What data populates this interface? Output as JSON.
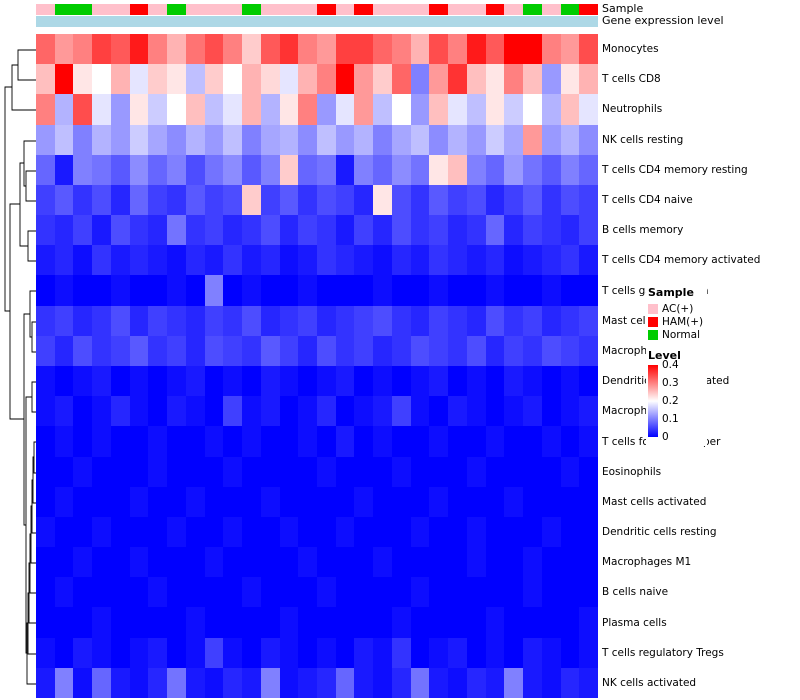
{
  "figure": {
    "background": "#ffffff"
  },
  "legend": {
    "sample_title": "Sample",
    "sample_items": [
      {
        "label": "AC(+)",
        "color": "#FFC0CB"
      },
      {
        "label": "HAM(+)",
        "color": "#FF0000"
      },
      {
        "label": "Normal",
        "color": "#00CC00"
      }
    ],
    "level_title": "Level",
    "level_ticks": [
      "0.4",
      "0.3",
      "0.2",
      "0.1",
      "0"
    ],
    "gradient": [
      "#FF0000",
      "#FFFFFF",
      "#0000FF"
    ]
  },
  "chart_data": {
    "type": "heatmap",
    "title": "",
    "columns": 30,
    "value_range": [
      0,
      0.4
    ],
    "colormap": {
      "low": "#0000FF",
      "mid": "#FFFFFF",
      "high": "#FF0000",
      "mid_at": 0.2
    },
    "sample_annotation": {
      "label": "Sample",
      "colors": {
        "AC(+)": "#FFC0CB",
        "HAM(+)": "#FF0000",
        "Normal": "#00CC00"
      },
      "values": [
        "AC(+)",
        "Normal",
        "Normal",
        "AC(+)",
        "AC(+)",
        "HAM(+)",
        "AC(+)",
        "Normal",
        "AC(+)",
        "AC(+)",
        "AC(+)",
        "Normal",
        "AC(+)",
        "AC(+)",
        "AC(+)",
        "HAM(+)",
        "AC(+)",
        "HAM(+)",
        "AC(+)",
        "AC(+)",
        "AC(+)",
        "HAM(+)",
        "AC(+)",
        "AC(+)",
        "HAM(+)",
        "AC(+)",
        "Normal",
        "AC(+)",
        "Normal",
        "HAM(+)"
      ]
    },
    "expression_annotation": {
      "label": "Gene expression level",
      "color": "#ADD8E6"
    },
    "rows": [
      "Monocytes",
      "T cells CD8",
      "Neutrophils",
      "NK cells resting",
      "T cells CD4 memory resting",
      "T cells CD4 naive",
      "B cells memory",
      "T cells CD4 memory activated",
      "T cells gamma delta",
      "Mast cells resting",
      "Macrophages M0",
      "Dendritic cells activated",
      "Macrophages M2",
      "T cells follicular helper",
      "Eosinophils",
      "Mast cells activated",
      "Dendritic cells resting",
      "Macrophages M1",
      "B cells naive",
      "Plasma cells",
      "T cells regulatory  Tregs",
      "NK cells activated"
    ],
    "values": [
      [
        0.32,
        0.28,
        0.3,
        0.35,
        0.33,
        0.38,
        0.3,
        0.26,
        0.31,
        0.34,
        0.3,
        0.24,
        0.33,
        0.36,
        0.3,
        0.28,
        0.35,
        0.35,
        0.32,
        0.3,
        0.26,
        0.34,
        0.3,
        0.38,
        0.33,
        0.4,
        0.42,
        0.3,
        0.28,
        0.34
      ],
      [
        0.25,
        0.42,
        0.22,
        0.2,
        0.26,
        0.18,
        0.24,
        0.22,
        0.15,
        0.24,
        0.2,
        0.26,
        0.23,
        0.18,
        0.26,
        0.3,
        0.4,
        0.28,
        0.24,
        0.32,
        0.1,
        0.28,
        0.36,
        0.25,
        0.22,
        0.3,
        0.25,
        0.12,
        0.22,
        0.26
      ],
      [
        0.3,
        0.14,
        0.34,
        0.18,
        0.12,
        0.22,
        0.16,
        0.2,
        0.25,
        0.15,
        0.18,
        0.26,
        0.14,
        0.22,
        0.3,
        0.12,
        0.18,
        0.28,
        0.15,
        0.2,
        0.12,
        0.25,
        0.18,
        0.15,
        0.22,
        0.16,
        0.2,
        0.14,
        0.25,
        0.18
      ],
      [
        0.12,
        0.15,
        0.1,
        0.14,
        0.12,
        0.16,
        0.13,
        0.11,
        0.14,
        0.12,
        0.15,
        0.1,
        0.13,
        0.14,
        0.11,
        0.15,
        0.12,
        0.14,
        0.1,
        0.13,
        0.15,
        0.11,
        0.14,
        0.12,
        0.16,
        0.13,
        0.28,
        0.12,
        0.14,
        0.11
      ],
      [
        0.08,
        0.02,
        0.1,
        0.09,
        0.07,
        0.11,
        0.08,
        0.1,
        0.06,
        0.09,
        0.11,
        0.07,
        0.1,
        0.24,
        0.08,
        0.09,
        0.02,
        0.1,
        0.08,
        0.11,
        0.09,
        0.22,
        0.25,
        0.1,
        0.08,
        0.12,
        0.09,
        0.07,
        0.1,
        0.08
      ],
      [
        0.05,
        0.07,
        0.04,
        0.06,
        0.03,
        0.08,
        0.05,
        0.04,
        0.07,
        0.05,
        0.06,
        0.24,
        0.05,
        0.07,
        0.04,
        0.06,
        0.05,
        0.03,
        0.22,
        0.06,
        0.04,
        0.07,
        0.05,
        0.06,
        0.03,
        0.05,
        0.07,
        0.04,
        0.06,
        0.05
      ],
      [
        0.04,
        0.03,
        0.05,
        0.02,
        0.06,
        0.04,
        0.03,
        0.09,
        0.04,
        0.05,
        0.03,
        0.04,
        0.06,
        0.03,
        0.05,
        0.04,
        0.02,
        0.05,
        0.03,
        0.06,
        0.04,
        0.05,
        0.03,
        0.04,
        0.08,
        0.03,
        0.05,
        0.04,
        0.03,
        0.05
      ],
      [
        0.02,
        0.03,
        0.01,
        0.04,
        0.02,
        0.03,
        0.02,
        0.01,
        0.03,
        0.02,
        0.04,
        0.02,
        0.03,
        0.01,
        0.02,
        0.04,
        0.03,
        0.02,
        0.01,
        0.03,
        0.02,
        0.04,
        0.03,
        0.02,
        0.03,
        0.01,
        0.02,
        0.03,
        0.04,
        0.02
      ],
      [
        0.0,
        0.01,
        0.0,
        0.0,
        0.01,
        0.0,
        0.0,
        0.01,
        0.0,
        0.1,
        0.0,
        0.01,
        0.0,
        0.0,
        0.01,
        0.0,
        0.0,
        0.0,
        0.01,
        0.0,
        0.0,
        0.01,
        0.0,
        0.0,
        0.01,
        0.0,
        0.0,
        0.01,
        0.0,
        0.0
      ],
      [
        0.04,
        0.05,
        0.03,
        0.04,
        0.06,
        0.03,
        0.05,
        0.04,
        0.03,
        0.05,
        0.04,
        0.06,
        0.03,
        0.04,
        0.05,
        0.03,
        0.04,
        0.05,
        0.06,
        0.04,
        0.03,
        0.05,
        0.04,
        0.03,
        0.06,
        0.04,
        0.05,
        0.03,
        0.04,
        0.05
      ],
      [
        0.05,
        0.03,
        0.06,
        0.04,
        0.05,
        0.07,
        0.04,
        0.05,
        0.03,
        0.06,
        0.05,
        0.04,
        0.07,
        0.05,
        0.03,
        0.06,
        0.04,
        0.05,
        0.03,
        0.04,
        0.06,
        0.05,
        0.04,
        0.06,
        0.03,
        0.05,
        0.04,
        0.06,
        0.05,
        0.04
      ],
      [
        0.01,
        0.0,
        0.01,
        0.02,
        0.0,
        0.01,
        0.0,
        0.01,
        0.02,
        0.0,
        0.01,
        0.0,
        0.02,
        0.01,
        0.0,
        0.01,
        0.02,
        0.0,
        0.01,
        0.0,
        0.01,
        0.02,
        0.0,
        0.01,
        0.0,
        0.02,
        0.01,
        0.0,
        0.01,
        0.0
      ],
      [
        0.01,
        0.02,
        0.0,
        0.01,
        0.03,
        0.01,
        0.0,
        0.02,
        0.01,
        0.0,
        0.05,
        0.01,
        0.02,
        0.0,
        0.01,
        0.03,
        0.0,
        0.01,
        0.02,
        0.05,
        0.01,
        0.0,
        0.02,
        0.01,
        0.0,
        0.01,
        0.02,
        0.0,
        0.01,
        0.02
      ],
      [
        0.0,
        0.01,
        0.0,
        0.01,
        0.0,
        0.0,
        0.01,
        0.0,
        0.0,
        0.01,
        0.0,
        0.01,
        0.0,
        0.0,
        0.01,
        0.0,
        0.02,
        0.0,
        0.01,
        0.0,
        0.0,
        0.01,
        0.0,
        0.0,
        0.01,
        0.0,
        0.0,
        0.01,
        0.0,
        0.01
      ],
      [
        0.0,
        0.0,
        0.01,
        0.0,
        0.0,
        0.0,
        0.01,
        0.0,
        0.0,
        0.0,
        0.01,
        0.0,
        0.0,
        0.0,
        0.0,
        0.01,
        0.0,
        0.0,
        0.0,
        0.01,
        0.0,
        0.0,
        0.0,
        0.01,
        0.0,
        0.0,
        0.0,
        0.0,
        0.01,
        0.0
      ],
      [
        0.0,
        0.01,
        0.0,
        0.0,
        0.0,
        0.01,
        0.0,
        0.0,
        0.01,
        0.0,
        0.0,
        0.0,
        0.01,
        0.0,
        0.0,
        0.0,
        0.0,
        0.01,
        0.0,
        0.0,
        0.0,
        0.01,
        0.0,
        0.0,
        0.0,
        0.01,
        0.0,
        0.0,
        0.0,
        0.0
      ],
      [
        0.01,
        0.0,
        0.0,
        0.01,
        0.0,
        0.0,
        0.0,
        0.01,
        0.0,
        0.0,
        0.01,
        0.0,
        0.0,
        0.01,
        0.0,
        0.0,
        0.01,
        0.0,
        0.0,
        0.0,
        0.01,
        0.0,
        0.0,
        0.01,
        0.0,
        0.0,
        0.0,
        0.01,
        0.0,
        0.0
      ],
      [
        0.0,
        0.0,
        0.01,
        0.0,
        0.0,
        0.01,
        0.0,
        0.0,
        0.0,
        0.01,
        0.0,
        0.0,
        0.0,
        0.0,
        0.01,
        0.0,
        0.0,
        0.0,
        0.01,
        0.0,
        0.0,
        0.0,
        0.0,
        0.01,
        0.0,
        0.0,
        0.01,
        0.0,
        0.0,
        0.0
      ],
      [
        0.0,
        0.01,
        0.0,
        0.0,
        0.0,
        0.0,
        0.01,
        0.0,
        0.0,
        0.0,
        0.0,
        0.01,
        0.0,
        0.0,
        0.0,
        0.01,
        0.0,
        0.0,
        0.0,
        0.0,
        0.01,
        0.0,
        0.0,
        0.0,
        0.0,
        0.0,
        0.01,
        0.0,
        0.0,
        0.0
      ],
      [
        0.0,
        0.0,
        0.0,
        0.01,
        0.0,
        0.0,
        0.0,
        0.0,
        0.01,
        0.0,
        0.0,
        0.0,
        0.0,
        0.01,
        0.0,
        0.0,
        0.0,
        0.0,
        0.0,
        0.01,
        0.0,
        0.0,
        0.0,
        0.0,
        0.01,
        0.0,
        0.0,
        0.0,
        0.0,
        0.01
      ],
      [
        0.01,
        0.0,
        0.02,
        0.01,
        0.0,
        0.01,
        0.02,
        0.0,
        0.01,
        0.05,
        0.01,
        0.0,
        0.02,
        0.01,
        0.0,
        0.01,
        0.0,
        0.02,
        0.01,
        0.04,
        0.0,
        0.01,
        0.02,
        0.0,
        0.01,
        0.0,
        0.02,
        0.01,
        0.0,
        0.01
      ],
      [
        0.02,
        0.1,
        0.01,
        0.08,
        0.02,
        0.01,
        0.03,
        0.09,
        0.02,
        0.01,
        0.03,
        0.02,
        0.1,
        0.01,
        0.02,
        0.03,
        0.08,
        0.02,
        0.01,
        0.03,
        0.09,
        0.02,
        0.01,
        0.03,
        0.02,
        0.1,
        0.02,
        0.01,
        0.03,
        0.02
      ]
    ]
  }
}
